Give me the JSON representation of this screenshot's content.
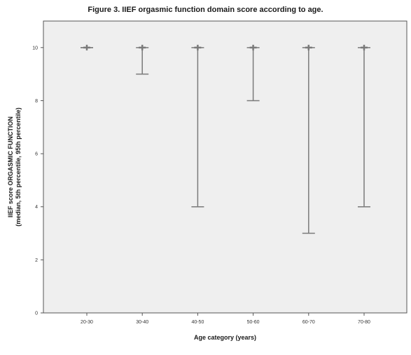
{
  "figure": {
    "title": "Figure 3. IIEF orgasmic function domain score according to age."
  },
  "chart_data": {
    "type": "error-bar",
    "title": "Figure 3. IIEF orgasmic function domain score according to age.",
    "xlabel": "Age category (years)",
    "ylabel": "IIEF score ORGASMIC FUNCTION",
    "ylabel_line2": "(median, 5th percentile, 95th percentile)",
    "categories": [
      "20-30",
      "30-40",
      "40-50",
      "50-60",
      "60-70",
      "70-80"
    ],
    "median": [
      10,
      10,
      10,
      10,
      10,
      10
    ],
    "p5": [
      10,
      9,
      4,
      8,
      3,
      4
    ],
    "p95": [
      10,
      10,
      10,
      10,
      10,
      10
    ],
    "ylim": [
      0,
      11
    ],
    "yticks": [
      0,
      2,
      4,
      6,
      8,
      10
    ],
    "grid": false,
    "legend": "none",
    "colors": {
      "plot_bg": "#efefef",
      "axis": "#555555",
      "bar": "#7a7a7a"
    }
  }
}
